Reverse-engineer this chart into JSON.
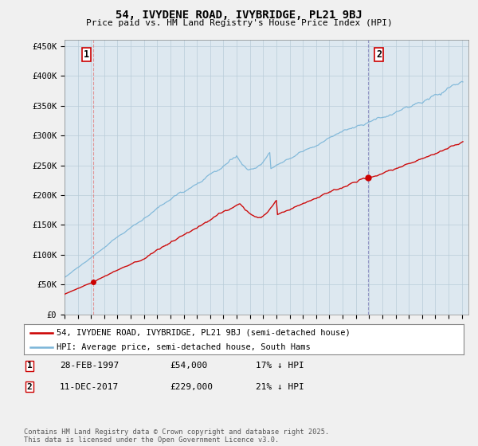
{
  "title": "54, IVYDENE ROAD, IVYBRIDGE, PL21 9BJ",
  "subtitle": "Price paid vs. HM Land Registry's House Price Index (HPI)",
  "ylabel_ticks": [
    "£0",
    "£50K",
    "£100K",
    "£150K",
    "£200K",
    "£250K",
    "£300K",
    "£350K",
    "£400K",
    "£450K"
  ],
  "ytick_values": [
    0,
    50000,
    100000,
    150000,
    200000,
    250000,
    300000,
    350000,
    400000,
    450000
  ],
  "ylim": [
    0,
    460000
  ],
  "xlim_start": 1995.0,
  "xlim_end": 2025.5,
  "sale1_date": 1997.16,
  "sale1_price": 54000,
  "sale1_label": "1",
  "sale2_date": 2017.94,
  "sale2_price": 229000,
  "sale2_label": "2",
  "hpi_color": "#7ab5d8",
  "price_color": "#cc0000",
  "vline_color": "#e08080",
  "vline2_color": "#8080cc",
  "legend_label1": "54, IVYDENE ROAD, IVYBRIDGE, PL21 9BJ (semi-detached house)",
  "legend_label2": "HPI: Average price, semi-detached house, South Hams",
  "note1_label": "1",
  "note1_date": "28-FEB-1997",
  "note1_price": "£54,000",
  "note1_hpi": "17% ↓ HPI",
  "note2_label": "2",
  "note2_date": "11-DEC-2017",
  "note2_price": "£229,000",
  "note2_hpi": "21% ↓ HPI",
  "footer": "Contains HM Land Registry data © Crown copyright and database right 2025.\nThis data is licensed under the Open Government Licence v3.0.",
  "background_color": "#f0f0f0",
  "plot_background": "#dde8f0"
}
